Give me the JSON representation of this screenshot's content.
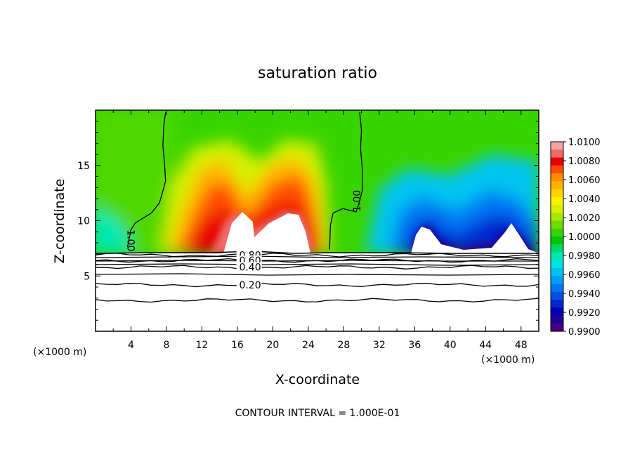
{
  "chart_data": {
    "type": "heatmap",
    "title": "saturation ratio",
    "xlabel": "X-coordinate",
    "ylabel": "Z-coordinate",
    "x_unit_left": "(×1000 m)",
    "x_unit_right": "(×1000 m)",
    "xlim": [
      0,
      50
    ],
    "ylim": [
      0,
      20
    ],
    "x_ticks": [
      {
        "value": 4,
        "label": "4"
      },
      {
        "value": 8,
        "label": "8"
      },
      {
        "value": 12,
        "label": "12"
      },
      {
        "value": 16,
        "label": "16"
      },
      {
        "value": 20,
        "label": "20"
      },
      {
        "value": 24,
        "label": "24"
      },
      {
        "value": 28,
        "label": "28"
      },
      {
        "value": 32,
        "label": "32"
      },
      {
        "value": 36,
        "label": "36"
      },
      {
        "value": 40,
        "label": "40"
      },
      {
        "value": 44,
        "label": "44"
      },
      {
        "value": 48,
        "label": "48"
      }
    ],
    "y_ticks": [
      {
        "value": 5,
        "label": "5"
      },
      {
        "value": 10,
        "label": "10"
      },
      {
        "value": 15,
        "label": "15"
      }
    ],
    "colorbar": {
      "levels": [
        "1.0100",
        "1.0080",
        "1.0060",
        "1.0040",
        "1.0020",
        "1.0000",
        "0.9980",
        "0.9960",
        "0.9940",
        "0.9920",
        "0.9900"
      ],
      "colors": [
        "#f7a3a3",
        "#f06a6a",
        "#e60000",
        "#ff4d00",
        "#ff8c00",
        "#ffb300",
        "#ffd400",
        "#fff000",
        "#d8f000",
        "#a8e800",
        "#6fdc00",
        "#38d400",
        "#00c800",
        "#00d86a",
        "#00e8b4",
        "#00e4e4",
        "#00c4f0",
        "#00a0f8",
        "#0078f4",
        "#0050e6",
        "#0028d0",
        "#0000b4",
        "#200096",
        "#450082"
      ]
    },
    "contour_lines": [
      {
        "label": "1.00",
        "x": [
          7.9,
          7.7,
          7.6,
          7.8,
          7.9,
          7.5,
          7.2,
          6.3,
          4.5,
          4.0,
          3.6
        ],
        "z": [
          19.8,
          18.6,
          16.8,
          15.0,
          13.6,
          12.4,
          11.6,
          10.7,
          9.8,
          9.2,
          7.6
        ]
      },
      {
        "label": "1.00",
        "x": [
          29.8,
          30.0,
          29.9,
          30.1,
          30.1,
          29.8,
          29.4,
          27.9,
          26.8,
          26.5,
          26.4
        ],
        "z": [
          19.8,
          18.2,
          16.5,
          14.6,
          12.8,
          11.8,
          10.8,
          11.1,
          10.7,
          9.6,
          7.4
        ]
      },
      {
        "label": "0.80",
        "z": 6.9
      },
      {
        "label": "0.60",
        "z": 6.4
      },
      {
        "label": "0.40",
        "z": 5.8
      },
      {
        "label": "0.20",
        "z": 4.2
      },
      {
        "label": "",
        "z": 2.8
      }
    ],
    "contour_interval_text": "CONTOUR INTERVAL = 1.000E-01"
  }
}
